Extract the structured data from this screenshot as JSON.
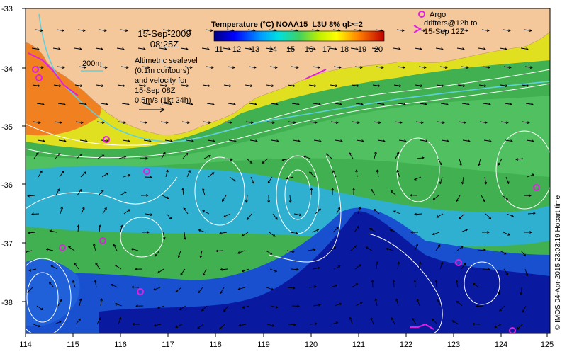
{
  "map": {
    "date": "15-Sep-2009",
    "time": "08:25Z",
    "lon_ticks": [
      "114",
      "115",
      "116",
      "117",
      "118",
      "119",
      "120",
      "121",
      "122",
      "123",
      "124",
      "125"
    ],
    "lat_ticks": [
      "-33",
      "-34",
      "-35",
      "-36",
      "-37",
      "-38"
    ],
    "colorbar": {
      "title": "Temperature (°C) NOAA15_L3U 8% ql>=2",
      "labels": [
        "11",
        "12",
        "13",
        "14",
        "15",
        "16",
        "17",
        "18",
        "19",
        "20"
      ]
    },
    "bathy_label": "200m",
    "sealevel_text": [
      "Altimetric sealevel",
      "(0.1m contours)",
      "and velocity for",
      "15-Sep 08Z",
      "0.5m/s (1kt 24h)"
    ],
    "argo_text": [
      "Argo",
      "drifters@12h to",
      "15-Sep 12Z"
    ],
    "credit": "© IMOS 04-Apr-2015 23:03:19 Hobart time",
    "colors": {
      "land": "#f5c89c",
      "argo": "#e020e0",
      "contour": "#ffffff",
      "bathy": "#5fd0e0"
    }
  }
}
